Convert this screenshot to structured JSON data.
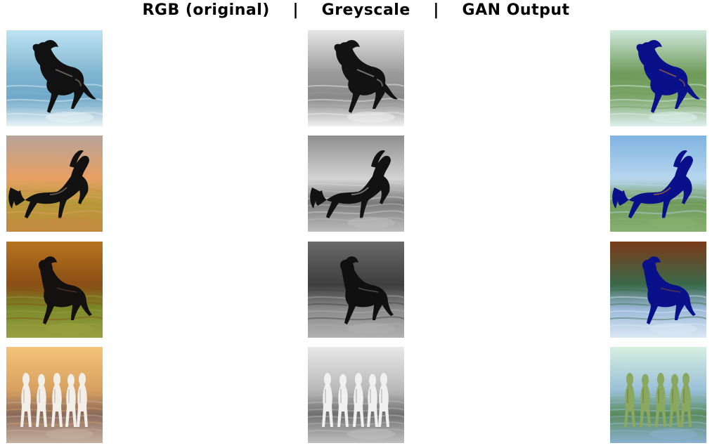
{
  "title": "RGB (original)    |    Greyscale    |    GAN Output",
  "columns": [
    "RGB (original)",
    "Greyscale",
    "GAN Output"
  ],
  "rows": [
    {
      "subject": "black horse galloping through ocean surf",
      "rgb": {
        "sky": "#bfe3f3",
        "horizon": "#7fb5d0",
        "ground": "#6fa8c8",
        "ground2": "#e9f3f6",
        "horse": "#111111",
        "highlight": "#8a7a70"
      },
      "grey": {
        "sky": "#e6e6e6",
        "horizon": "#9a9a9a",
        "ground": "#8a8a8a",
        "ground2": "#f0f0f0",
        "horse": "#121212",
        "highlight": "#9a9a9a"
      },
      "gan": {
        "sky": "#cfe9dc",
        "horizon": "#6f9a5a",
        "ground": "#7da66a",
        "ground2": "#dff0f0",
        "horse": "#0a0f8a",
        "highlight": "#9a6a40"
      }
    },
    {
      "subject": "black horse rearing at sunset over grass",
      "rgb": {
        "sky": "#b9a39a",
        "horizon": "#e7a062",
        "ground": "#b69a3a",
        "ground2": "#c28a40",
        "horse": "#111111",
        "highlight": "#7a6a66"
      },
      "grey": {
        "sky": "#8e8e8e",
        "horizon": "#d4d4d4",
        "ground": "#7a7a7a",
        "ground2": "#bdbdbd",
        "horse": "#121212",
        "highlight": "#9a9a9a"
      },
      "gan": {
        "sky": "#7fb3e0",
        "horizon": "#b7d7ef",
        "ground": "#6f9a5a",
        "ground2": "#88b070",
        "horse": "#0a0f8a",
        "highlight": "#9a6a40"
      }
    },
    {
      "subject": "black horse trotting in autumn forest",
      "rgb": {
        "sky": "#b7741f",
        "horizon": "#8a4e14",
        "ground": "#7a8a2a",
        "ground2": "#9aa040",
        "horse": "#141010",
        "highlight": "#5a4030"
      },
      "grey": {
        "sky": "#6a6a6a",
        "horizon": "#3e3e3e",
        "ground": "#8a8a8a",
        "ground2": "#b0b0b0",
        "horse": "#101010",
        "highlight": "#666666"
      },
      "gan": {
        "sky": "#7a3a1a",
        "horizon": "#3a6a4a",
        "ground": "#9ab8d8",
        "ground2": "#dbe8f5",
        "horse": "#0a0f8a",
        "highlight": "#6a4a30"
      }
    },
    {
      "subject": "group of white horses running through shallow water at sunset",
      "rgb": {
        "sky": "#f3c47a",
        "horizon": "#d8a060",
        "ground": "#8a6a5a",
        "ground2": "#c7b0a0",
        "horse": "#f2eee8",
        "highlight": "#b8a8a0"
      },
      "grey": {
        "sky": "#e8e8e8",
        "horizon": "#b8b8b8",
        "ground": "#707070",
        "ground2": "#c0c0c0",
        "horse": "#f0f0f0",
        "highlight": "#a0a0a0"
      },
      "gan": {
        "sky": "#d6efe0",
        "horizon": "#9ac0d8",
        "ground": "#5a8a5a",
        "ground2": "#8ab0d0",
        "horse": "#8aa860",
        "highlight": "#6a7a40"
      }
    }
  ]
}
